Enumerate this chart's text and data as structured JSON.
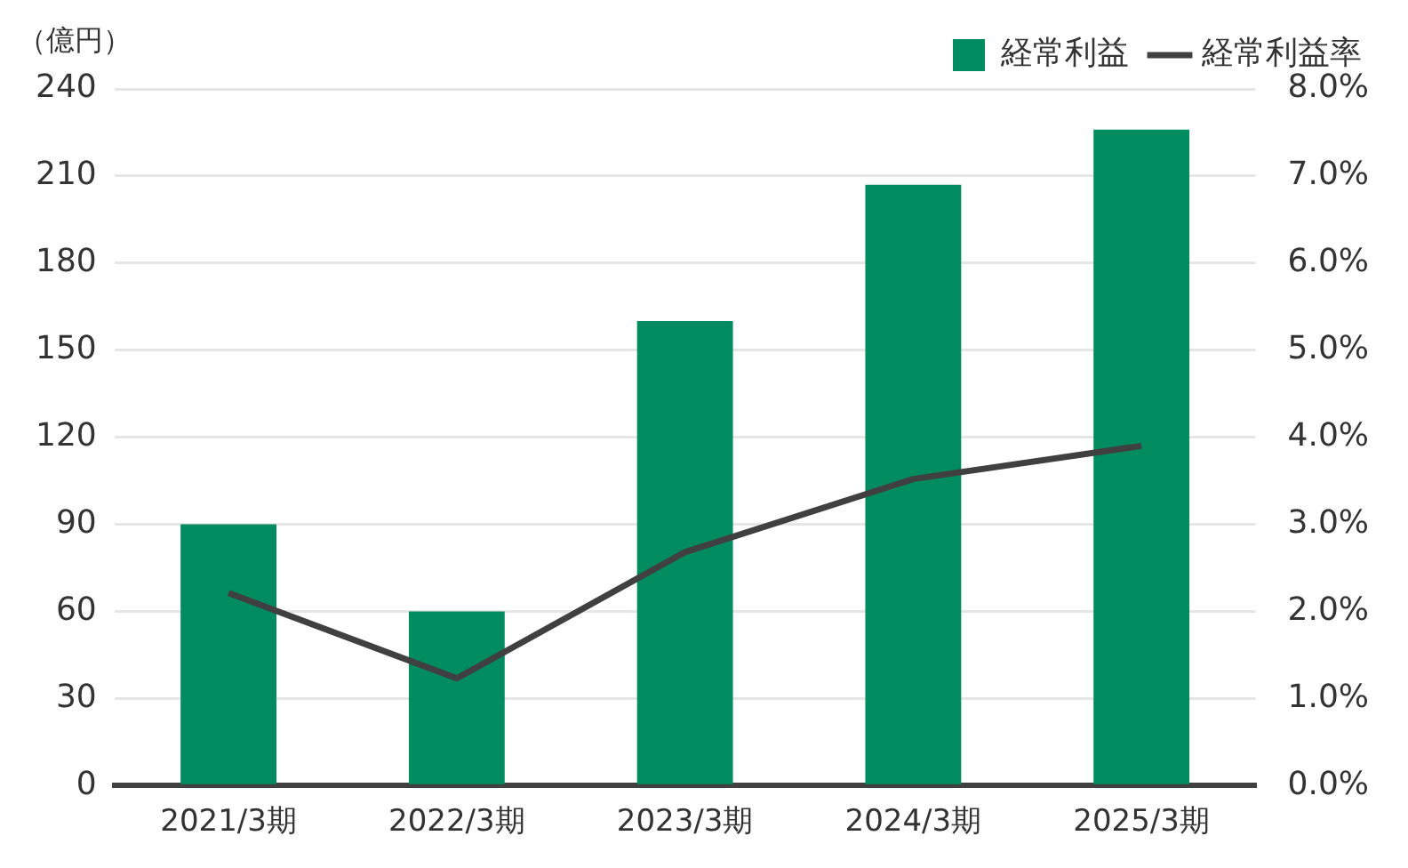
{
  "chart_data": {
    "type": "bar",
    "ylabel": "（億円）",
    "categories": [
      "2021/3期",
      "2022/3期",
      "2023/3期",
      "2024/3期",
      "2025/3期"
    ],
    "series": [
      {
        "name": "経常利益",
        "color": "#008c5f",
        "values": [
          90,
          60,
          160,
          207,
          226
        ]
      },
      {
        "name": "経常利益率",
        "type": "line",
        "axis": "y2",
        "color": "#404040",
        "values": [
          2.21,
          1.23,
          2.68,
          3.52,
          3.9
        ]
      }
    ],
    "ylim": [
      0,
      240
    ],
    "yticks": [
      0,
      30,
      60,
      90,
      120,
      150,
      180,
      210,
      240
    ],
    "y2lim": [
      0,
      8
    ],
    "y2ticks": [
      {
        "value": 0,
        "label": "0.0%"
      },
      {
        "value": 1,
        "label": "1.0%"
      },
      {
        "value": 2,
        "label": "2.0%"
      },
      {
        "value": 3,
        "label": "3.0%"
      },
      {
        "value": 4,
        "label": "4.0%"
      },
      {
        "value": 5,
        "label": "5.0%"
      },
      {
        "value": 6,
        "label": "6.0%"
      },
      {
        "value": 7,
        "label": "7.0%"
      },
      {
        "value": 8,
        "label": "8.0%"
      }
    ],
    "grid": "y",
    "legend": "top right",
    "marker": "none",
    "line_style": "solid"
  }
}
